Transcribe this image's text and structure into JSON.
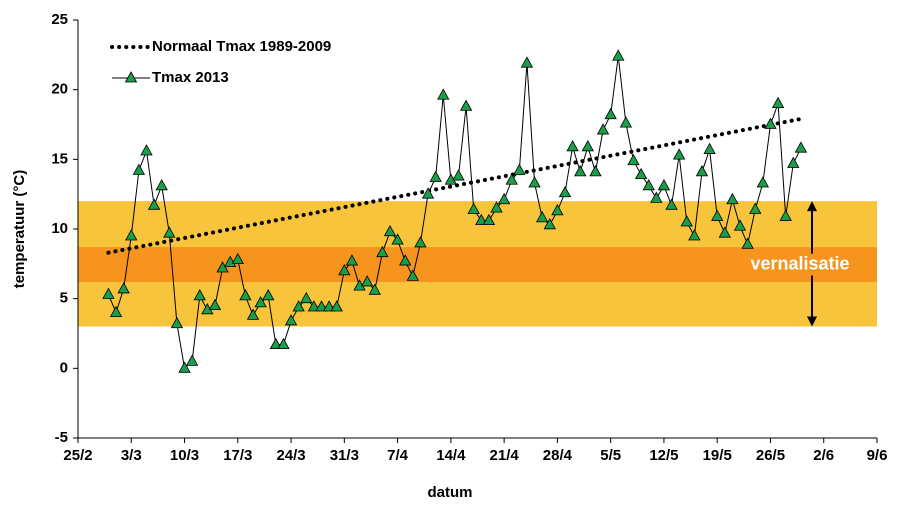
{
  "chart_data": {
    "type": "line",
    "y_label": "temperatuur (°C)",
    "x_label": "datum",
    "xlim": [
      0,
      105
    ],
    "ylim": [
      -5,
      25
    ],
    "xticks": [
      {
        "value": 0,
        "label": "25/2"
      },
      {
        "value": 7,
        "label": "3/3"
      },
      {
        "value": 14,
        "label": "10/3"
      },
      {
        "value": 21,
        "label": "17/3"
      },
      {
        "value": 28,
        "label": "24/3"
      },
      {
        "value": 35,
        "label": "31/3"
      },
      {
        "value": 42,
        "label": "7/4"
      },
      {
        "value": 49,
        "label": "14/4"
      },
      {
        "value": 56,
        "label": "21/4"
      },
      {
        "value": 63,
        "label": "28/4"
      },
      {
        "value": 70,
        "label": "5/5"
      },
      {
        "value": 77,
        "label": "12/5"
      },
      {
        "value": 84,
        "label": "19/5"
      },
      {
        "value": 91,
        "label": "26/5"
      },
      {
        "value": 98,
        "label": "2/6"
      },
      {
        "value": 105,
        "label": "9/6"
      }
    ],
    "yticks": [
      -5,
      0,
      5,
      10,
      15,
      20,
      25
    ],
    "bands": [
      {
        "from": 3,
        "to": 12,
        "color": "#f8c43c"
      },
      {
        "from": 6.2,
        "to": 8.7,
        "color": "#f7941d"
      }
    ],
    "band_label": "vernalisatie",
    "series": [
      {
        "name": "Normaal Tmax 1989-2009",
        "color": "#000000",
        "style": "dotted",
        "x": [
          4,
          95
        ],
        "values": [
          8.3,
          17.9
        ]
      },
      {
        "name": "Tmax 2013",
        "color": "#000000",
        "marker_color": "#1a9e4a",
        "style": "solid",
        "x": [
          4,
          5,
          6,
          7,
          8,
          9,
          10,
          11,
          12,
          13,
          14,
          15,
          16,
          17,
          18,
          19,
          20,
          21,
          22,
          23,
          24,
          25,
          26,
          27,
          28,
          29,
          30,
          31,
          32,
          33,
          34,
          35,
          36,
          37,
          38,
          39,
          40,
          41,
          42,
          43,
          44,
          45,
          46,
          47,
          48,
          49,
          50,
          51,
          52,
          53,
          54,
          55,
          56,
          57,
          58,
          59,
          60,
          61,
          62,
          63,
          64,
          65,
          66,
          67,
          68,
          69,
          70,
          71,
          72,
          73,
          74,
          75,
          76,
          77,
          78,
          79,
          80,
          81,
          82,
          83,
          84,
          85,
          86,
          87,
          88,
          89,
          90,
          91,
          92,
          93,
          94,
          95
        ],
        "values": [
          5.3,
          4.0,
          5.7,
          9.5,
          14.2,
          15.6,
          11.7,
          13.1,
          9.7,
          3.2,
          0.0,
          0.5,
          5.2,
          4.2,
          4.5,
          7.2,
          7.6,
          7.8,
          5.2,
          3.8,
          4.7,
          5.2,
          1.7,
          1.7,
          3.4,
          4.4,
          5.0,
          4.4,
          4.4,
          4.4,
          4.4,
          7.0,
          7.7,
          5.9,
          6.2,
          5.6,
          8.3,
          9.8,
          9.2,
          7.7,
          6.6,
          9.0,
          12.5,
          13.7,
          19.6,
          13.5,
          13.8,
          18.8,
          11.4,
          10.6,
          10.6,
          11.5,
          12.1,
          13.5,
          14.2,
          21.9,
          13.3,
          10.8,
          10.3,
          11.3,
          12.6,
          15.9,
          14.1,
          15.9,
          14.1,
          17.1,
          18.2,
          22.4,
          17.6,
          14.9,
          13.9,
          13.1,
          12.2,
          13.1,
          11.7,
          15.3,
          10.5,
          9.5,
          14.1,
          15.7,
          10.9,
          9.7,
          12.1,
          10.2,
          8.9,
          11.4,
          13.3,
          17.5,
          19.0,
          10.9,
          14.7,
          15.8
        ]
      }
    ]
  }
}
